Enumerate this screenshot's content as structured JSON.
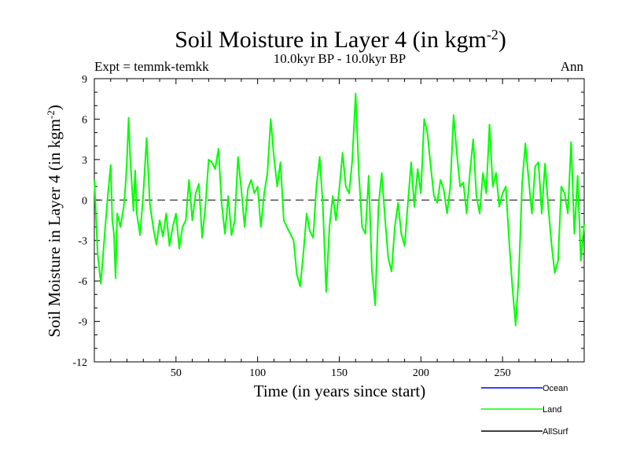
{
  "chart_data": {
    "type": "line",
    "title": "Soil Moisture in Layer 4 (in kgm",
    "title_superscript": "-2",
    "title_close": ")",
    "subtitle_left": "Expt = temmk-temkk",
    "subtitle_center": "10.0kyr BP - 10.0kyr BP",
    "subtitle_right": "Ann",
    "xlabel": "Time (in years since start)",
    "ylabel": "Soil Moisture in Layer 4 (in kgm",
    "ylabel_superscript": "-2",
    "ylabel_close": ")",
    "xlim": [
      0,
      300
    ],
    "ylim": [
      -12,
      9
    ],
    "xticks": [
      50,
      100,
      150,
      200,
      250
    ],
    "yticks": [
      -12,
      -9,
      -6,
      -3,
      0,
      3,
      6,
      9
    ],
    "reference_line": {
      "y": 0,
      "style": "dashed"
    },
    "legend_position": "bottom-right, below plot",
    "series": [
      {
        "name": "Ocean",
        "color": "#0000ff",
        "x": [],
        "values": []
      },
      {
        "name": "Land",
        "color": "#00ff00",
        "x": [
          0,
          2,
          4,
          6,
          8,
          10,
          11,
          12,
          13,
          14,
          16,
          18,
          19,
          20,
          21,
          22,
          24,
          25,
          26,
          28,
          30,
          32,
          34,
          36,
          38,
          40,
          42,
          44,
          46,
          48,
          50,
          52,
          54,
          56,
          58,
          60,
          62,
          64,
          66,
          68,
          70,
          72,
          74,
          76,
          78,
          80,
          82,
          84,
          86,
          88,
          90,
          92,
          94,
          96,
          98,
          100,
          102,
          104,
          106,
          108,
          110,
          112,
          114,
          116,
          118,
          120,
          122,
          124,
          126,
          128,
          130,
          132,
          134,
          136,
          138,
          140,
          142,
          144,
          146,
          148,
          150,
          152,
          154,
          156,
          158,
          160,
          162,
          164,
          166,
          168,
          170,
          172,
          174,
          176,
          178,
          180,
          182,
          184,
          186,
          188,
          190,
          192,
          194,
          196,
          198,
          200,
          202,
          204,
          206,
          208,
          210,
          212,
          214,
          216,
          218,
          220,
          222,
          224,
          226,
          228,
          230,
          232,
          234,
          236,
          238,
          240,
          242,
          244,
          246,
          248,
          250,
          252,
          254,
          256,
          258,
          260,
          262,
          264,
          266,
          268,
          270,
          272,
          274,
          276,
          278,
          280,
          282,
          284,
          286,
          288,
          290,
          292,
          294,
          296,
          298,
          300
        ],
        "values": [
          1.5,
          -4,
          -6.2,
          -3,
          0,
          2.6,
          -1.5,
          -2.5,
          -5.8,
          -1,
          -2,
          -0.5,
          1,
          3,
          6.1,
          3,
          -0.8,
          2.2,
          -1,
          -2.6,
          0.5,
          4.6,
          -0.3,
          -2,
          -3.3,
          -1.5,
          -2.7,
          -1,
          -3.4,
          -2,
          -1,
          -3.6,
          -2,
          -1.5,
          1.5,
          -1.5,
          0.5,
          1.2,
          -2.8,
          -0.5,
          3,
          2.8,
          2.3,
          3.8,
          -0.3,
          -2.5,
          0.3,
          -2.6,
          -1.5,
          3.2,
          0.8,
          -2,
          0.8,
          1.5,
          0.5,
          1,
          -2,
          0.5,
          2,
          6,
          3.2,
          1,
          2.8,
          -1.5,
          -2,
          -2.5,
          -3,
          -5.5,
          -6.4,
          -4,
          -1,
          -2.3,
          -2.8,
          1,
          3.2,
          -0.5,
          -6.8,
          -2,
          0.3,
          -1.5,
          0.8,
          3.5,
          1,
          0.5,
          3,
          7.9,
          2,
          -2,
          -2.5,
          1.8,
          -5.2,
          -7.8,
          -0.5,
          2,
          -1.3,
          -4.3,
          -5.3,
          -2,
          -0.2,
          -2.5,
          -3.4,
          -0.3,
          2.8,
          -0.5,
          2.3,
          0.5,
          6,
          5,
          2.5,
          0.3,
          -0.2,
          1.5,
          0.8,
          -1,
          1,
          6.3,
          3.5,
          1,
          1.3,
          -1,
          2,
          4.5,
          0.3,
          -1,
          2,
          0.5,
          5.6,
          1,
          2,
          -0.5,
          0.5,
          1,
          -3,
          -6.4,
          -9.3,
          -5.5,
          1.3,
          4.2,
          1.5,
          -1,
          2.5,
          2.8,
          -1,
          2.7,
          -0.5,
          -3.3,
          -5.4,
          -4.5,
          1,
          0.5,
          -1,
          4.3,
          -2.5,
          1.8,
          -4.5,
          -1.8
        ]
      },
      {
        "name": "AllSurf",
        "color": "#000000",
        "x": [],
        "values": []
      }
    ]
  }
}
